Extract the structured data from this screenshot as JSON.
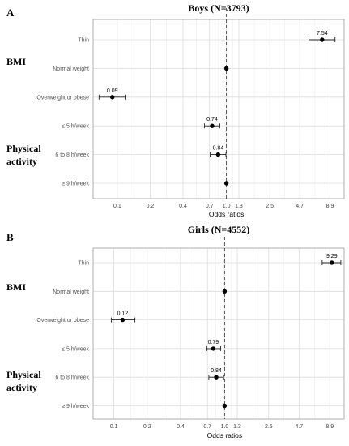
{
  "chart_data": [
    {
      "type": "scatter",
      "panel_letter": "A",
      "title": "Boys (N=3793)",
      "xlabel": "Odds ratios",
      "ylabel": "",
      "x_scale": "log",
      "xlim": [
        0.06,
        12
      ],
      "x_ticks": [
        "0.1",
        "0.2",
        "0.4",
        "0.7",
        "1.0",
        "1.3",
        "2.5",
        "4.7",
        "8.9"
      ],
      "reference_line": 1.0,
      "grid": true,
      "groups": [
        {
          "label": "BMI",
          "rows": [
            0,
            1,
            2
          ]
        },
        {
          "label": "Physical activity",
          "rows": [
            3,
            4,
            5
          ]
        }
      ],
      "categories": [
        "Thin",
        "Normal weight",
        "Overweight or obese",
        "≤ 5 h/week",
        "6 to 8 h/week",
        "≥ 9 h/week"
      ],
      "values": [
        7.54,
        1.0,
        0.09,
        0.74,
        0.84,
        1.0
      ],
      "ci_low": [
        5.7,
        1.0,
        0.068,
        0.63,
        0.71,
        1.0
      ],
      "ci_high": [
        9.9,
        1.0,
        0.118,
        0.87,
        0.99,
        1.0
      ],
      "value_labels": [
        "7.54",
        "",
        "0.09",
        "0.74",
        "0.84",
        ""
      ]
    },
    {
      "type": "scatter",
      "panel_letter": "B",
      "title": "Girls (N=4552)",
      "xlabel": "Odds ratios",
      "ylabel": "",
      "x_scale": "log",
      "xlim": [
        0.065,
        12
      ],
      "x_ticks": [
        "0.1",
        "0.2",
        "0.4",
        "0.7",
        "1.0",
        "1.3",
        "2.5",
        "4.7",
        "8.9"
      ],
      "reference_line": 1.0,
      "grid": true,
      "groups": [
        {
          "label": "BMI",
          "rows": [
            0,
            1,
            2
          ]
        },
        {
          "label": "Physical activity",
          "rows": [
            3,
            4,
            5
          ]
        }
      ],
      "categories": [
        "Thin",
        "Normal weight",
        "Overweight or obese",
        "≤ 5 h/week",
        "6 to 8 h/week",
        "≥ 9 h/week"
      ],
      "values": [
        9.29,
        1.0,
        0.12,
        0.79,
        0.84,
        1.0
      ],
      "ci_low": [
        7.6,
        1.0,
        0.095,
        0.69,
        0.72,
        1.0
      ],
      "ci_high": [
        11.2,
        1.0,
        0.155,
        0.92,
        0.98,
        1.0
      ],
      "value_labels": [
        "9.29",
        "",
        "0.12",
        "0.79",
        "0.84",
        ""
      ]
    }
  ]
}
